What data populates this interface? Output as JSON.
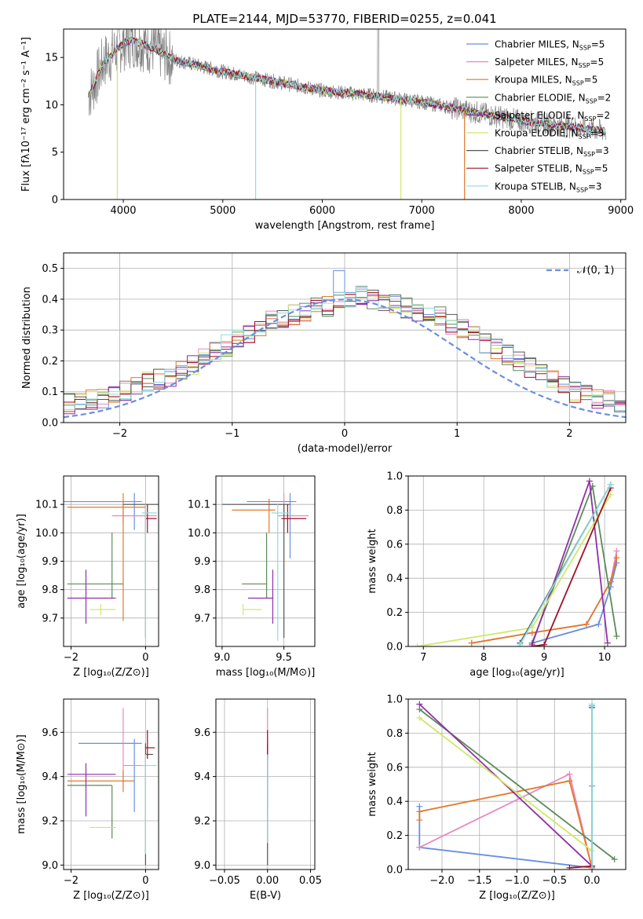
{
  "colors": {
    "c0": "#6a8ee0",
    "c1": "#e889c0",
    "c2": "#e07a2a",
    "c3": "#5b8a5b",
    "c4": "#8e2fa8",
    "c5": "#cfe86a",
    "c6": "#555555",
    "c7": "#a01025",
    "c8": "#8fdce0"
  },
  "chart_data": [
    {
      "id": "spectrum",
      "type": "line",
      "title": "PLATE=2144, MJD=53770, FIBERID=0255, z=0.041",
      "xlabel": "wavelength [Angstrom, rest frame]",
      "ylabel": "Flux [fλ10⁻¹⁷ erg cm⁻² s⁻¹ A⁻¹]",
      "xlim": [
        3400,
        9050
      ],
      "ylim": [
        0,
        18
      ],
      "xticks": [
        "4000",
        "5000",
        "6000",
        "7000",
        "8000",
        "9000"
      ],
      "yticks": [
        "0",
        "5",
        "10",
        "15"
      ],
      "legend_position": "top-right",
      "legend": [
        {
          "label": "Chabrier MILES, N",
          "sub": "SSP",
          "tail": "=5",
          "color": "#6a8ee0"
        },
        {
          "label": "Salpeter MILES, N",
          "sub": "SSP",
          "tail": "=5",
          "color": "#e889c0"
        },
        {
          "label": "Kroupa MILES, N",
          "sub": "SSP",
          "tail": "=5",
          "color": "#e07a2a"
        },
        {
          "label": "Chabrier ELODIE, N",
          "sub": "SSP",
          "tail": "=2",
          "color": "#5b8a5b"
        },
        {
          "label": "Salpeter ELODIE, N",
          "sub": "SSP",
          "tail": "=2",
          "color": "#8e2fa8"
        },
        {
          "label": "Kroupa ELODIE, N",
          "sub": "SSP",
          "tail": "=3",
          "color": "#cfe86a"
        },
        {
          "label": "Chabrier STELIB, N",
          "sub": "SSP",
          "tail": "=3",
          "color": "#555555"
        },
        {
          "label": "Salpeter STELIB, N",
          "sub": "SSP",
          "tail": "=5",
          "color": "#a01025"
        },
        {
          "label": "Kroupa STELIB, N",
          "sub": "SSP",
          "tail": "=3",
          "color": "#8fdce0"
        }
      ],
      "continuum": {
        "x": [
          3650,
          3700,
          3800,
          3900,
          4000,
          4100,
          4300,
          4500,
          5000,
          5500,
          6000,
          6500,
          7000,
          7400,
          8000,
          8500,
          8850
        ],
        "y": [
          11.0,
          12.0,
          14.5,
          15.5,
          16.5,
          16.8,
          16.0,
          14.8,
          13.5,
          12.5,
          11.5,
          11.0,
          10.3,
          9.5,
          8.3,
          7.7,
          7.2
        ]
      }
    },
    {
      "id": "residuals",
      "type": "histogram",
      "xlabel": "(data-model)/error",
      "ylabel": "Normed distribution",
      "xlim": [
        -2.5,
        2.5
      ],
      "ylim": [
        0,
        0.55
      ],
      "xticks": [
        "−2",
        "−1",
        "0",
        "1",
        "2"
      ],
      "yticks": [
        "0.0",
        "0.1",
        "0.2",
        "0.3",
        "0.4",
        "0.5"
      ],
      "legend_position": "top-right",
      "normal_label": "𝒩(0, 1)",
      "normal_color": "#6a8ee0",
      "bin_width": 0.1,
      "base_counts": [
        0.04,
        0.045,
        0.05,
        0.06,
        0.07,
        0.075,
        0.08,
        0.09,
        0.1,
        0.12,
        0.13,
        0.14,
        0.15,
        0.17,
        0.19,
        0.21,
        0.23,
        0.25,
        0.27,
        0.29,
        0.31,
        0.33,
        0.34,
        0.35,
        0.36,
        0.37,
        0.38,
        0.39,
        0.4,
        0.41,
        0.4,
        0.39,
        0.38,
        0.37,
        0.36,
        0.35,
        0.34,
        0.32,
        0.3,
        0.28,
        0.26,
        0.24,
        0.22,
        0.2,
        0.18,
        0.16,
        0.14,
        0.12,
        0.1,
        0.09,
        0.08,
        0.07,
        0.06,
        0.05,
        0.045,
        0.04
      ]
    },
    {
      "id": "age-vs-z",
      "type": "errorbar",
      "xlabel": "Z [log₁₀(Z/Z⊙)]",
      "ylabel": "age  [log₁₀(age/yr)]",
      "xlim": [
        -2.2,
        0.35
      ],
      "ylim": [
        9.6,
        10.2
      ],
      "xticks": [
        "−2",
        "0"
      ],
      "yticks": [
        "9.7",
        "9.8",
        "9.9",
        "10.0",
        "10.1"
      ],
      "points": [
        {
          "x": -0.3,
          "y": 10.11,
          "xerr": [
            1.9,
            0.2
          ],
          "yerr": [
            0.1,
            0.03
          ],
          "color": "#6a8ee0"
        },
        {
          "x": -0.6,
          "y": 10.06,
          "xerr": [
            0.3,
            0.9
          ],
          "yerr": [
            0.03,
            0.04
          ],
          "color": "#e889c0"
        },
        {
          "x": -0.6,
          "y": 10.09,
          "xerr": [
            1.5,
            0.6
          ],
          "yerr": [
            0.4,
            0.05
          ],
          "color": "#e07a2a"
        },
        {
          "x": -0.9,
          "y": 9.82,
          "xerr": [
            1.2,
            0.3
          ],
          "yerr": [
            0.05,
            0.18
          ],
          "color": "#5b8a5b"
        },
        {
          "x": -1.6,
          "y": 9.77,
          "xerr": [
            0.5,
            0.8
          ],
          "yerr": [
            0.09,
            0.1
          ],
          "color": "#8e2fa8"
        },
        {
          "x": -1.2,
          "y": 9.73,
          "xerr": [
            0.3,
            0.4
          ],
          "yerr": [
            0.02,
            0.02
          ],
          "color": "#cfe86a"
        },
        {
          "x": -0.0,
          "y": 10.1,
          "xerr": [
            0.6,
            0.5
          ],
          "yerr": [
            0.47,
            0.0
          ],
          "color": "#555555"
        },
        {
          "x": 0.05,
          "y": 10.05,
          "xerr": [
            0.05,
            0.25
          ],
          "yerr": [
            0.05,
            0.05
          ],
          "color": "#a01025"
        },
        {
          "x": 0.0,
          "y": 10.07,
          "xerr": [
            0.1,
            0.3
          ],
          "yerr": [
            0.45,
            0.03
          ],
          "color": "#8fdce0"
        }
      ]
    },
    {
      "id": "age-vs-mass",
      "type": "errorbar",
      "xlabel": "mass [log₁₀(M/M⊙)]",
      "ylabel": "",
      "xlim": [
        8.95,
        9.75
      ],
      "ylim": [
        9.6,
        10.2
      ],
      "xticks": [
        "9.0",
        "9.5"
      ],
      "yticks": [
        "9.7",
        "9.8",
        "9.9",
        "10.0",
        "10.1"
      ],
      "points": [
        {
          "x": 9.55,
          "y": 10.11,
          "xerr": [
            0.35,
            0.05
          ],
          "yerr": [
            0.2,
            0.03
          ],
          "color": "#6a8ee0"
        },
        {
          "x": 9.5,
          "y": 10.06,
          "xerr": [
            0.05,
            0.2
          ],
          "yerr": [
            0.05,
            0.08
          ],
          "color": "#e889c0"
        },
        {
          "x": 9.38,
          "y": 10.08,
          "xerr": [
            0.3,
            0.05
          ],
          "yerr": [
            0.08,
            0.04
          ],
          "color": "#e07a2a"
        },
        {
          "x": 9.36,
          "y": 9.82,
          "xerr": [
            0.2,
            0.0
          ],
          "yerr": [
            0.05,
            0.18
          ],
          "color": "#5b8a5b"
        },
        {
          "x": 9.41,
          "y": 9.77,
          "xerr": [
            0.2,
            0.0
          ],
          "yerr": [
            0.09,
            0.1
          ],
          "color": "#8e2fa8"
        },
        {
          "x": 9.17,
          "y": 9.73,
          "xerr": [
            0.0,
            0.15
          ],
          "yerr": [
            0.02,
            0.02
          ],
          "color": "#cfe86a"
        },
        {
          "x": 9.5,
          "y": 10.1,
          "xerr": [
            0.5,
            0.05
          ],
          "yerr": [
            0.47,
            0.0
          ],
          "color": "#555555"
        },
        {
          "x": 9.53,
          "y": 10.05,
          "xerr": [
            0.05,
            0.15
          ],
          "yerr": [
            0.05,
            0.05
          ],
          "color": "#a01025"
        },
        {
          "x": 9.45,
          "y": 10.07,
          "xerr": [
            0.05,
            0.1
          ],
          "yerr": [
            0.45,
            0.03
          ],
          "color": "#8fdce0"
        }
      ]
    },
    {
      "id": "weight-vs-age",
      "type": "line",
      "xlabel": "age  [log₁₀(age/yr)]",
      "ylabel": "mass weight",
      "xlim": [
        6.75,
        10.35
      ],
      "ylim": [
        0,
        1.0
      ],
      "xticks": [
        "7",
        "8",
        "9",
        "10"
      ],
      "yticks": [
        "0.0",
        "0.2",
        "0.4",
        "0.6",
        "0.8",
        "1.0"
      ],
      "series": [
        {
          "color": "#6a8ee0",
          "x": [
            8.8,
            9.9,
            10.1,
            10.2
          ],
          "y": [
            0.02,
            0.13,
            0.35,
            0.49
          ]
        },
        {
          "color": "#e889c0",
          "x": [
            7.8,
            8.8,
            9.7,
            10.1,
            10.2
          ],
          "y": [
            0.02,
            0.08,
            0.13,
            0.38,
            0.56
          ]
        },
        {
          "color": "#e07a2a",
          "x": [
            7.8,
            8.8,
            9.7,
            10.1,
            10.2
          ],
          "y": [
            0.02,
            0.08,
            0.13,
            0.38,
            0.52
          ]
        },
        {
          "color": "#5b8a5b",
          "x": [
            8.8,
            9.8,
            10.2
          ],
          "y": [
            0.02,
            0.94,
            0.06
          ]
        },
        {
          "color": "#8e2fa8",
          "x": [
            8.8,
            9.75,
            10.05
          ],
          "y": [
            0.01,
            0.97,
            0.02
          ]
        },
        {
          "color": "#cfe86a",
          "x": [
            6.9,
            8.8,
            10.1
          ],
          "y": [
            0.0,
            0.11,
            0.89
          ]
        },
        {
          "color": "#555555",
          "x": [
            8.6,
            10.1
          ],
          "y": [
            0.02,
            0.95
          ]
        },
        {
          "color": "#a01025",
          "x": [
            8.8,
            9.0,
            10.1
          ],
          "y": [
            0.0,
            0.01,
            0.93
          ]
        },
        {
          "color": "#8fdce0",
          "x": [
            8.6,
            10.1
          ],
          "y": [
            0.01,
            0.95
          ]
        }
      ]
    },
    {
      "id": "mass-vs-z",
      "type": "errorbar",
      "xlabel": "Z [log₁₀(Z/Z⊙)]",
      "ylabel": "mass [log₁₀(M/M⊙)]",
      "xlim": [
        -2.2,
        0.35
      ],
      "ylim": [
        8.98,
        9.75
      ],
      "xticks": [
        "−2",
        "0"
      ],
      "yticks": [
        "9.0",
        "9.2",
        "9.4",
        "9.6"
      ],
      "points": [
        {
          "x": -0.3,
          "y": 9.55,
          "xerr": [
            1.5,
            0.2
          ],
          "yerr": [
            0.31,
            0.02
          ],
          "color": "#6a8ee0"
        },
        {
          "x": -0.6,
          "y": 9.45,
          "xerr": [
            0.0,
            0.6
          ],
          "yerr": [
            0.08,
            0.26
          ],
          "color": "#e889c0"
        },
        {
          "x": -0.6,
          "y": 9.38,
          "xerr": [
            1.5,
            0.3
          ],
          "yerr": [
            0.05,
            0.05
          ],
          "color": "#e07a2a"
        },
        {
          "x": -0.9,
          "y": 9.36,
          "xerr": [
            1.2,
            0.0
          ],
          "yerr": [
            0.24,
            0.0
          ],
          "color": "#5b8a5b"
        },
        {
          "x": -1.6,
          "y": 9.41,
          "xerr": [
            0.5,
            0.8
          ],
          "yerr": [
            0.19,
            0.05
          ],
          "color": "#8e2fa8"
        },
        {
          "x": -1.2,
          "y": 9.17,
          "xerr": [
            0.3,
            0.4
          ],
          "yerr": [
            0.0,
            0.0
          ],
          "color": "#cfe86a"
        },
        {
          "x": 0.0,
          "y": 9.5,
          "xerr": [
            0.0,
            0.2
          ],
          "yerr": [
            0.5,
            0.05
          ],
          "color": "#555555"
        },
        {
          "x": 0.05,
          "y": 9.53,
          "xerr": [
            0.05,
            0.2
          ],
          "yerr": [
            0.05,
            0.08
          ],
          "color": "#a01025"
        },
        {
          "x": 0.0,
          "y": 9.45,
          "xerr": [
            0.1,
            0.3
          ],
          "yerr": [
            0.4,
            0.05
          ],
          "color": "#8fdce0"
        }
      ]
    },
    {
      "id": "mass-vs-ebv",
      "type": "errorbar",
      "xlabel": "E(B-V)",
      "ylabel": "",
      "xlim": [
        -0.06,
        0.055
      ],
      "ylim": [
        8.98,
        9.75
      ],
      "xticks": [
        "−0.05",
        "0.00",
        "0.05"
      ],
      "yticks": [
        "9.0",
        "9.2",
        "9.4",
        "9.6"
      ],
      "points": [
        {
          "x": 0.0,
          "y": 9.55,
          "xerr": [
            0,
            0
          ],
          "yerr": [
            0.3,
            0.02
          ],
          "color": "#6a8ee0"
        },
        {
          "x": 0.0,
          "y": 9.45,
          "xerr": [
            0,
            0
          ],
          "yerr": [
            0.08,
            0.26
          ],
          "color": "#e889c0"
        },
        {
          "x": 0.0,
          "y": 9.5,
          "xerr": [
            0,
            0
          ],
          "yerr": [
            0.5,
            0.05
          ],
          "color": "#555555"
        },
        {
          "x": 0.0,
          "y": 9.53,
          "xerr": [
            0,
            0
          ],
          "yerr": [
            0.05,
            0.08
          ],
          "color": "#a01025"
        },
        {
          "x": 0.0,
          "y": 9.45,
          "xerr": [
            0,
            0
          ],
          "yerr": [
            0.35,
            0.05
          ],
          "color": "#8fdce0"
        }
      ]
    },
    {
      "id": "weight-vs-z",
      "type": "line",
      "xlabel": "Z [log₁₀(Z/Z⊙)]",
      "ylabel": "mass weight",
      "xlim": [
        -2.45,
        0.45
      ],
      "ylim": [
        0,
        1.0
      ],
      "xticks": [
        "−2.0",
        "−1.5",
        "−1.0",
        "−0.5",
        "0.0"
      ],
      "yticks": [
        "0.0",
        "0.2",
        "0.4",
        "0.6",
        "0.8",
        "1.0"
      ],
      "series": [
        {
          "color": "#6a8ee0",
          "x": [
            -2.3,
            -2.3,
            0.0,
            0.0,
            0.0
          ],
          "y": [
            0.37,
            0.13,
            0.01,
            0.49,
            0.96
          ]
        },
        {
          "color": "#e889c0",
          "x": [
            -2.3,
            -0.3,
            0.0
          ],
          "y": [
            0.13,
            0.56,
            0.01
          ]
        },
        {
          "color": "#e07a2a",
          "x": [
            -2.3,
            -2.3,
            -0.3,
            0.0
          ],
          "y": [
            0.29,
            0.34,
            0.52,
            0.01
          ]
        },
        {
          "color": "#5b8a5b",
          "x": [
            -2.3,
            0.3
          ],
          "y": [
            0.94,
            0.06
          ]
        },
        {
          "color": "#8e2fa8",
          "x": [
            -2.3,
            0.0
          ],
          "y": [
            0.97,
            0.02
          ]
        },
        {
          "color": "#cfe86a",
          "x": [
            -2.3,
            0.0
          ],
          "y": [
            0.89,
            0.11
          ]
        },
        {
          "color": "#555555",
          "x": [
            0.0,
            0.0
          ],
          "y": [
            0.02,
            0.95
          ]
        },
        {
          "color": "#a01025",
          "x": [
            -0.3,
            0.0
          ],
          "y": [
            0.01,
            0.02
          ]
        },
        {
          "color": "#8fdce0",
          "x": [
            0.0,
            0.0
          ],
          "y": [
            0.0,
            0.97
          ]
        }
      ]
    }
  ]
}
